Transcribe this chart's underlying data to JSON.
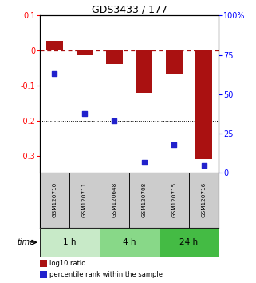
{
  "title": "GDS3433 / 177",
  "samples": [
    "GSM120710",
    "GSM120711",
    "GSM120648",
    "GSM120708",
    "GSM120715",
    "GSM120716"
  ],
  "log10_ratio": [
    0.028,
    -0.012,
    -0.038,
    -0.12,
    -0.068,
    -0.31
  ],
  "percentile_rank_pct": [
    63,
    38,
    33,
    7,
    18,
    5
  ],
  "bar_color": "#aa1111",
  "dot_color": "#2222cc",
  "ylim_left": [
    -0.35,
    0.1
  ],
  "ylim_right": [
    0,
    100
  ],
  "yticks_left": [
    0.1,
    0.0,
    -0.1,
    -0.2,
    -0.3
  ],
  "ytick_labels_left": [
    "0.1",
    "0",
    "-0.1",
    "-0.2",
    "-0.3"
  ],
  "yticks_right": [
    100,
    75,
    50,
    25,
    0
  ],
  "ytick_labels_right": [
    "100%",
    "75",
    "50",
    "25",
    "0"
  ],
  "dotted_lines": [
    -0.1,
    -0.2
  ],
  "time_groups": [
    {
      "label": "1 h",
      "start": 0,
      "end": 2,
      "color": "#c8eac8"
    },
    {
      "label": "4 h",
      "start": 2,
      "end": 4,
      "color": "#88d888"
    },
    {
      "label": "24 h",
      "start": 4,
      "end": 6,
      "color": "#44bb44"
    }
  ],
  "legend_bar_label": "log10 ratio",
  "legend_dot_label": "percentile rank within the sample",
  "bar_width": 0.55,
  "bg_color": "#ffffff",
  "sample_box_color": "#cccccc"
}
